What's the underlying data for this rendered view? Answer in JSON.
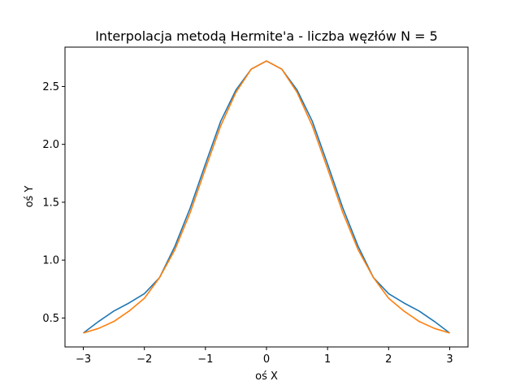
{
  "chart_data": {
    "type": "line",
    "title": "Interpolacja metodą Hermite'a - liczba węzłów N = 5",
    "xlabel": "oś X",
    "ylabel": "oś Y",
    "xlim": [
      -3.3,
      3.3
    ],
    "ylim": [
      0.25,
      2.84
    ],
    "grid": false,
    "xticks": [
      -3,
      -2,
      -1,
      0,
      1,
      2,
      3
    ],
    "xtick_labels": [
      "−3",
      "−2",
      "−1",
      "0",
      "1",
      "2",
      "3"
    ],
    "yticks": [
      0.5,
      1.0,
      1.5,
      2.0,
      2.5
    ],
    "ytick_labels": [
      "0.5",
      "1.0",
      "1.5",
      "2.0",
      "2.5"
    ],
    "x": [
      -3.0,
      -2.75,
      -2.5,
      -2.25,
      -2.0,
      -1.75,
      -1.5,
      -1.25,
      -1.0,
      -0.75,
      -0.5,
      -0.25,
      0.0,
      0.25,
      0.5,
      0.75,
      1.0,
      1.25,
      1.5,
      1.75,
      2.0,
      2.25,
      2.5,
      2.75,
      3.0
    ],
    "series": [
      {
        "color": "#1f77b4",
        "values": [
          0.37,
          0.47,
          0.56,
          0.63,
          0.71,
          0.85,
          1.12,
          1.45,
          1.83,
          2.2,
          2.47,
          2.65,
          2.72,
          2.65,
          2.47,
          2.2,
          1.83,
          1.45,
          1.12,
          0.85,
          0.71,
          0.63,
          0.56,
          0.47,
          0.37
        ]
      },
      {
        "color": "#ff7f0e",
        "values": [
          0.37,
          0.41,
          0.47,
          0.56,
          0.67,
          0.85,
          1.09,
          1.41,
          1.79,
          2.16,
          2.45,
          2.65,
          2.72,
          2.65,
          2.45,
          2.16,
          1.79,
          1.41,
          1.09,
          0.85,
          0.67,
          0.56,
          0.47,
          0.41,
          0.37
        ]
      }
    ]
  }
}
